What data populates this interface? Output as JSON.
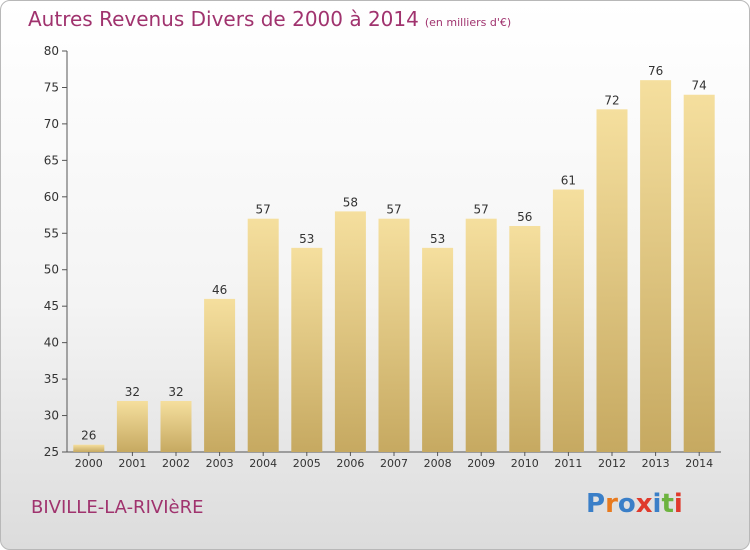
{
  "title": "Autres Revenus Divers de 2000 à 2014",
  "subtitle": "(en milliers d'€)",
  "commune": "BIVILLE-LA-RIVIèRE",
  "brand": {
    "text": "Proxiti",
    "letters": [
      {
        "ch": "P",
        "color": "#3a7fc8"
      },
      {
        "ch": "r",
        "color": "#e87a1e"
      },
      {
        "ch": "o",
        "color": "#3a7fc8"
      },
      {
        "ch": "x",
        "color": "#e03a2c"
      },
      {
        "ch": "i",
        "color": "#3a7fc8"
      },
      {
        "ch": "t",
        "color": "#6db33f"
      },
      {
        "ch": "i",
        "color": "#e03a2c"
      }
    ]
  },
  "colors": {
    "accent": "#a0336e",
    "bar_light": "#f5df9e",
    "bar_dark": "#c6a961"
  },
  "chart_data": {
    "type": "bar",
    "title": "Autres Revenus Divers de 2000 à 2014",
    "subtitle": "(en milliers d'€)",
    "categories": [
      "2000",
      "2001",
      "2002",
      "2003",
      "2004",
      "2005",
      "2006",
      "2007",
      "2008",
      "2009",
      "2010",
      "2011",
      "2012",
      "2013",
      "2014"
    ],
    "values": [
      26,
      32,
      32,
      46,
      57,
      53,
      58,
      57,
      53,
      57,
      56,
      61,
      72,
      76,
      74
    ],
    "ylim": [
      25,
      80
    ],
    "yticks": [
      25,
      30,
      35,
      40,
      45,
      50,
      55,
      60,
      65,
      70,
      75,
      80
    ],
    "grid": false,
    "legend": "none"
  }
}
